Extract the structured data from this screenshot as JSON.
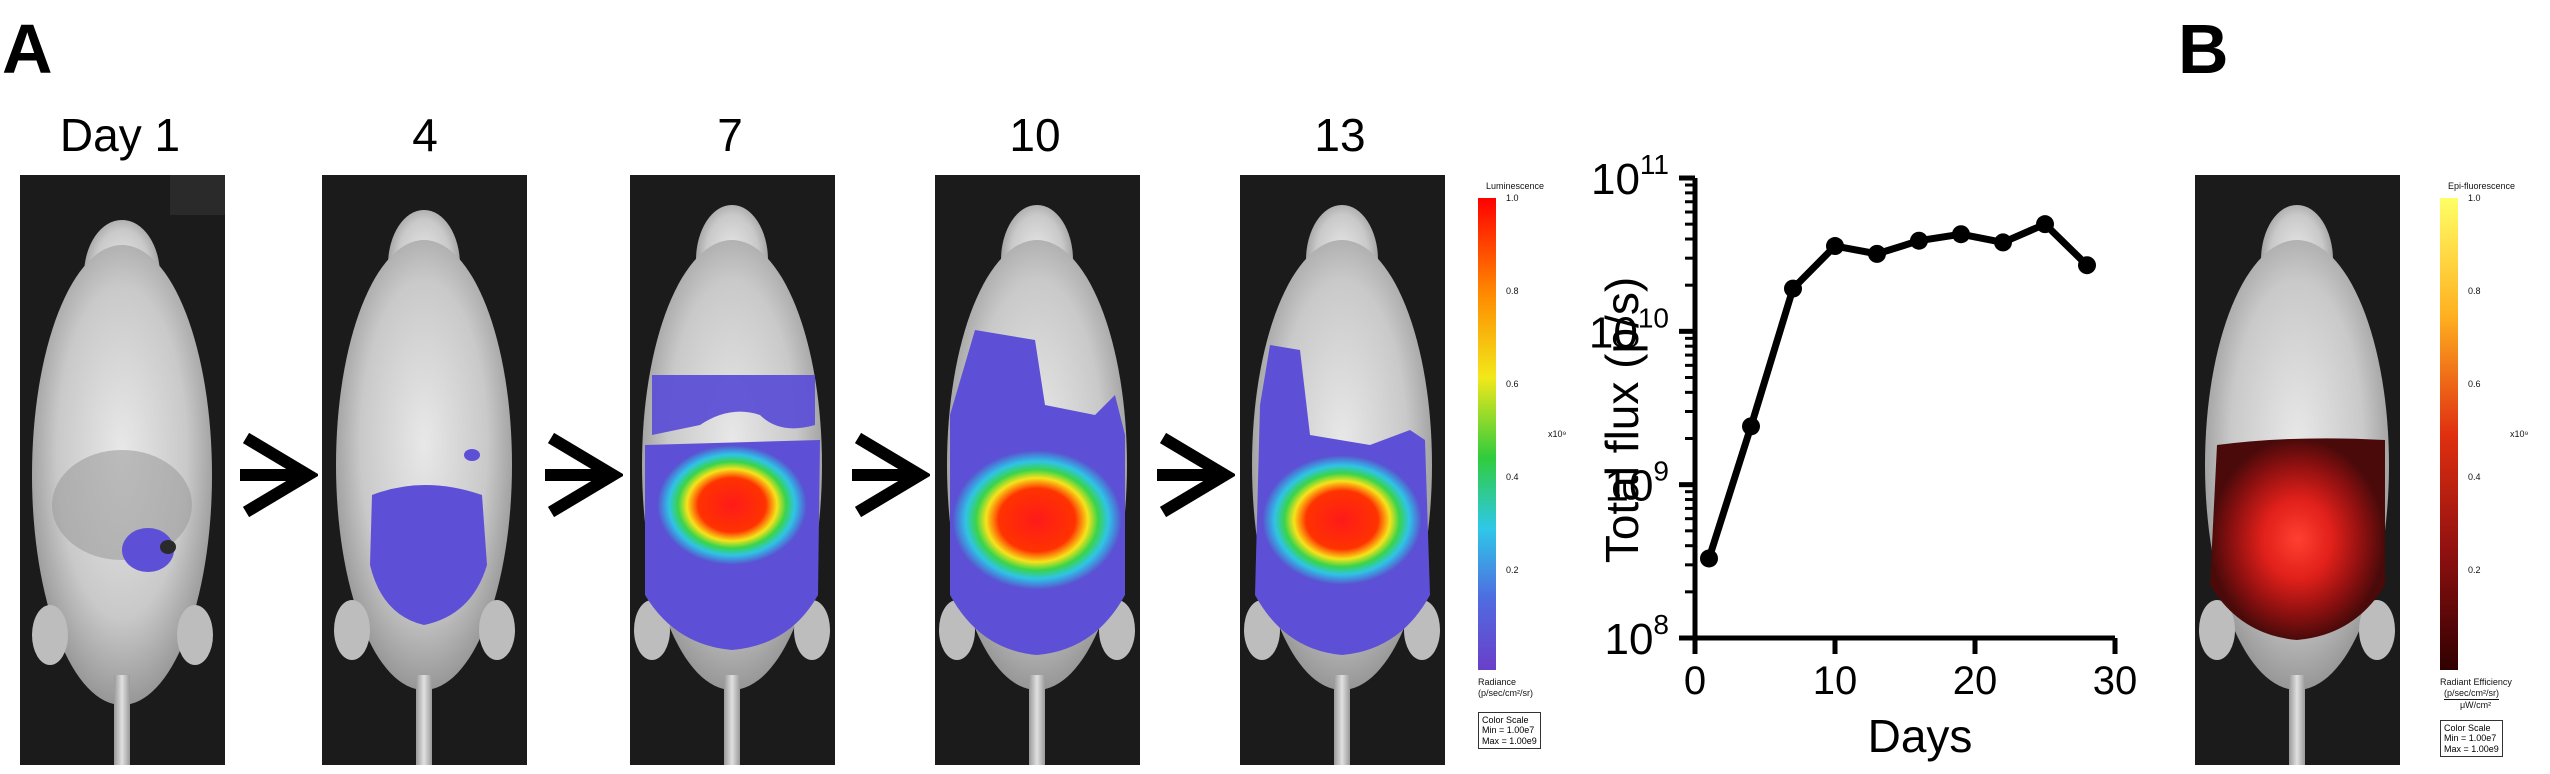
{
  "panels": {
    "a": "A",
    "b": "B"
  },
  "day_labels": [
    "Day 1",
    "4",
    "7",
    "10",
    "13"
  ],
  "luminescence_scale": {
    "title": "Luminescence",
    "ticks": [
      "1.0",
      "0.8",
      "0.6",
      "0.4",
      "0.2"
    ],
    "multiplier": "x10⁹",
    "unit_title": "Radiance",
    "unit": "(p/sec/cm²/sr)",
    "box_title": "Color Scale",
    "box_min": "Min = 1.00e7",
    "box_max": "Max = 1.00e9"
  },
  "fluorescence_scale": {
    "title": "Epi-fluorescence",
    "ticks": [
      "1.0",
      "0.8",
      "0.6",
      "0.4",
      "0.2"
    ],
    "multiplier": "x10⁹",
    "unit_title": "Radiant Efficiency",
    "unit_num": "(p/sec/cm²/sr)",
    "unit_den": "μW/cm²",
    "box_title": "Color Scale",
    "box_min": "Min = 1.00e7",
    "box_max": "Max = 1.00e9"
  },
  "chart_data": {
    "type": "line",
    "xlabel": "Days",
    "ylabel": "Total flux (p/s)",
    "xlim": [
      0,
      30
    ],
    "ylim": [
      100000000,
      100000000000
    ],
    "log_y": true,
    "x_ticks": [
      "0",
      "10",
      "20",
      "30"
    ],
    "y_ticks": [
      {
        "base": "10",
        "exp": "8"
      },
      {
        "base": "10",
        "exp": "9"
      },
      {
        "base": "10",
        "exp": "10"
      },
      {
        "base": "10",
        "exp": "11"
      }
    ],
    "series": [
      {
        "x": [
          1,
          4,
          7,
          10,
          13,
          16,
          19,
          22,
          25,
          28
        ],
        "y": [
          330000000,
          2400000000,
          19000000000,
          36000000000,
          32000000000,
          39000000000,
          43000000000,
          38000000000,
          50000000000,
          27000000000
        ]
      }
    ],
    "grid": false,
    "color": "#000000"
  }
}
